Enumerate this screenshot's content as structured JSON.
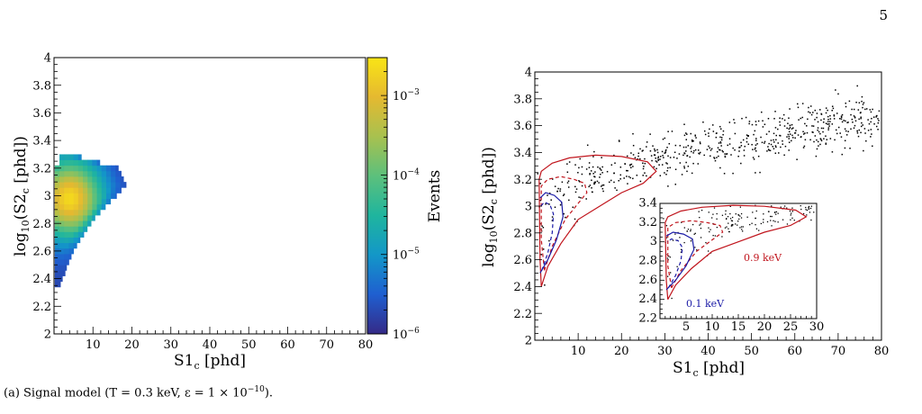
{
  "page_number": "5",
  "caption": {
    "prefix": "(a) Signal model (T = 0.3 keV, ε = 1 × 10",
    "exponent": "−10",
    "suffix": ")."
  },
  "colors": {
    "red_contour": "#c0141c",
    "blue_contour": "#1a1aa6",
    "scatter": "#000000",
    "palette": [
      "#352a87",
      "#1f5fd0",
      "#1397c8",
      "#1fb59e",
      "#5cc07c",
      "#a8c14f",
      "#e5b930",
      "#f9e516"
    ]
  },
  "chart_data": [
    {
      "type": "heatmap",
      "xlabel_main": "S1",
      "xlabel_sub": "c",
      "xlabel_unit": " [phd]",
      "ylabel_pre": "log",
      "ylabel_sub1": "10",
      "ylabel_mid": "(S2",
      "ylabel_sub2": "c",
      "ylabel_post": " [phd])",
      "xlim": [
        0,
        80
      ],
      "ylim": [
        2,
        4
      ],
      "xticks": [
        "10",
        "20",
        "30",
        "40",
        "50",
        "60",
        "70",
        "80"
      ],
      "yticks": [
        "2",
        "2.2",
        "2.4",
        "2.6",
        "2.8",
        "3",
        "3.2",
        "3.4",
        "3.6",
        "3.8",
        "4"
      ],
      "colorbar": {
        "label": "Events",
        "scale": "log",
        "range": [
          1e-06,
          0.003
        ],
        "tick_base": "10",
        "tick_exponents": [
          "−6",
          "−5",
          "−4",
          "−3"
        ]
      },
      "bin_size": {
        "x": 1.2,
        "y": 0.04
      },
      "region_description_points": {
        "s1_ranges_by_log_s2": [
          [
            2.36,
            0.2,
            1.6
          ],
          [
            2.48,
            0.2,
            3.2
          ],
          [
            2.6,
            0.2,
            5.0
          ],
          [
            2.72,
            0.2,
            7.5
          ],
          [
            2.84,
            0.2,
            10.5
          ],
          [
            2.96,
            0.2,
            14.5
          ],
          [
            3.08,
            0.2,
            18.5
          ],
          [
            3.2,
            0.2,
            16.5
          ],
          [
            3.28,
            2.0,
            7.0
          ]
        ],
        "peak": [
          4.0,
          2.98
        ]
      }
    },
    {
      "type": "scatter",
      "xlabel_main": "S1",
      "xlabel_sub": "c",
      "xlabel_unit": " [phd]",
      "ylabel_pre": "log",
      "ylabel_sub1": "10",
      "ylabel_mid": "(S2",
      "ylabel_sub2": "c",
      "ylabel_post": " [phd])",
      "xlim": [
        0,
        80
      ],
      "ylim": [
        2,
        4
      ],
      "xticks": [
        "10",
        "20",
        "30",
        "40",
        "50",
        "60",
        "70",
        "80"
      ],
      "yticks": [
        "2",
        "2.2",
        "2.4",
        "2.6",
        "2.8",
        "3",
        "3.2",
        "3.4",
        "3.6",
        "3.8",
        "4"
      ],
      "band_trend": {
        "x": [
          1,
          5,
          10,
          20,
          30,
          40,
          50,
          60,
          70,
          80
        ],
        "y_mean": [
          2.85,
          3.05,
          3.15,
          3.28,
          3.36,
          3.44,
          3.5,
          3.56,
          3.62,
          3.66
        ],
        "spread": 0.09,
        "n_points": 620
      },
      "contours": [
        {
          "name": "0.9 keV",
          "style": "solid",
          "color": "red",
          "level": "outer",
          "points": [
            [
              1.5,
              2.4
            ],
            [
              3,
              2.55
            ],
            [
              6,
              2.72
            ],
            [
              10,
              2.9
            ],
            [
              15,
              3.0
            ],
            [
              20,
              3.1
            ],
            [
              25,
              3.17
            ],
            [
              28,
              3.26
            ],
            [
              26,
              3.33
            ],
            [
              20,
              3.37
            ],
            [
              14,
              3.38
            ],
            [
              8,
              3.36
            ],
            [
              4,
              3.32
            ],
            [
              1.5,
              3.26
            ],
            [
              1,
              3.2
            ],
            [
              1.2,
              2.6
            ],
            [
              1.5,
              2.4
            ]
          ]
        },
        {
          "name": "",
          "style": "dashed",
          "color": "red",
          "level": "inner",
          "points": [
            [
              2.2,
              2.52
            ],
            [
              4,
              2.7
            ],
            [
              7,
              2.9
            ],
            [
              10,
              3.02
            ],
            [
              12,
              3.1
            ],
            [
              11.5,
              3.17
            ],
            [
              9,
              3.2
            ],
            [
              6,
              3.22
            ],
            [
              3,
              3.2
            ],
            [
              1.5,
              3.15
            ],
            [
              1.5,
              2.75
            ],
            [
              2.2,
              2.52
            ]
          ]
        },
        {
          "name": "0.1 keV",
          "style": "solid",
          "color": "blue",
          "level": "outer",
          "points": [
            [
              1.2,
              2.5
            ],
            [
              3,
              2.6
            ],
            [
              5,
              2.75
            ],
            [
              6.5,
              2.92
            ],
            [
              6.2,
              3.03
            ],
            [
              4.5,
              3.08
            ],
            [
              2.5,
              3.1
            ],
            [
              1.2,
              3.06
            ]
          ]
        },
        {
          "name": "",
          "style": "dashed",
          "color": "blue",
          "level": "inner",
          "points": [
            [
              1.6,
              2.52
            ],
            [
              3,
              2.65
            ],
            [
              4,
              2.8
            ],
            [
              4.3,
              2.94
            ],
            [
              3.5,
              3.01
            ],
            [
              2.2,
              3.03
            ],
            [
              1.4,
              3.0
            ]
          ]
        }
      ],
      "inset": {
        "xlim": [
          0,
          30
        ],
        "ylim": [
          2.2,
          3.4
        ],
        "xticks": [
          "5",
          "10",
          "15",
          "20",
          "25",
          "30"
        ],
        "yticks": [
          "2.2",
          "2.4",
          "2.6",
          "2.8",
          "3",
          "3.2",
          "3.4"
        ],
        "labels": [
          {
            "text": "0.9 keV",
            "color": "red"
          },
          {
            "text": "0.1 keV",
            "color": "blue"
          }
        ]
      }
    }
  ]
}
